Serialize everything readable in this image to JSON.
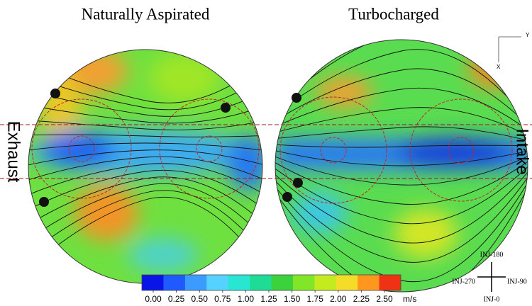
{
  "titles": [
    "Naturally Aspirated",
    "Turbocharged"
  ],
  "side_labels": {
    "left": "Exhaust",
    "right": "Intake"
  },
  "colorbar": {
    "colors": [
      "#0a14e6",
      "#1e5aff",
      "#3c9bff",
      "#55d2ff",
      "#28e6d2",
      "#1edc96",
      "#3cd23c",
      "#82e628",
      "#c3eb1e",
      "#f5dc28",
      "#ff961e",
      "#f03214"
    ],
    "ticks": [
      {
        "value": 0,
        "label": "0.00"
      },
      {
        "value": 0.25,
        "label": "0.25"
      },
      {
        "value": 0.5,
        "label": "0.50"
      },
      {
        "value": 0.75,
        "label": "0.75"
      },
      {
        "value": 1,
        "label": "1.00"
      },
      {
        "value": 1.25,
        "label": "1.25"
      },
      {
        "value": 1.5,
        "label": "1.50"
      },
      {
        "value": 1.75,
        "label": "1.75"
      },
      {
        "value": 2,
        "label": "2.00"
      },
      {
        "value": 2.25,
        "label": "2.25"
      },
      {
        "value": 2.5,
        "label": "2.50"
      }
    ],
    "unit": "m/s"
  },
  "compass": {
    "top": "INJ-180",
    "bottom": "INJ-0",
    "left": "INJ-270",
    "right": "INJ-90"
  },
  "axes_indicator": {
    "y": "Y",
    "x": "X"
  }
}
